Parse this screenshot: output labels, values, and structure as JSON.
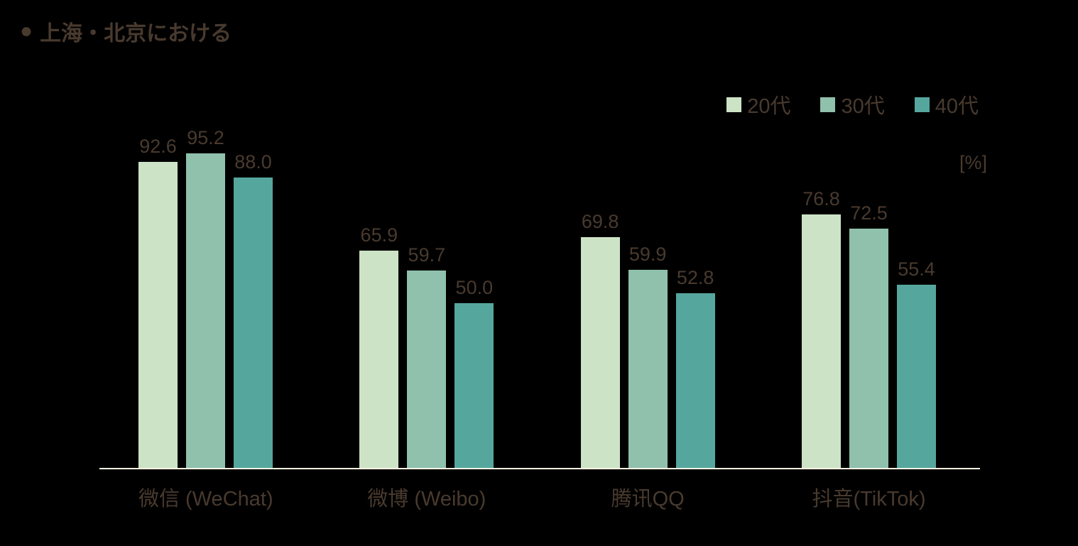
{
  "background": "#000000",
  "text_color": "#493a2e",
  "axis_color": "#f8f1e3",
  "header": {
    "bullet": "●",
    "title": "上海・北京における"
  },
  "unit_label": "[%]",
  "chart_data": {
    "type": "bar",
    "title": "上海・北京における",
    "categories": [
      "微信 (WeChat)",
      "微博 (Weibo)",
      "腾讯QQ",
      "抖音(TikTok)"
    ],
    "series": [
      {
        "name": "20代",
        "color": "#cde3c5",
        "values": [
          92.6,
          65.9,
          69.8,
          76.8
        ]
      },
      {
        "name": "30代",
        "color": "#8fc1ad",
        "values": [
          95.2,
          59.7,
          59.9,
          72.5
        ]
      },
      {
        "name": "40代",
        "color": "#55a79e",
        "values": [
          88.0,
          50.0,
          52.8,
          55.4
        ]
      }
    ],
    "ylabel": "[%]",
    "ylim": [
      0,
      100
    ],
    "value_labels": true,
    "value_label_format": "0.1f",
    "legend_position": "top-right",
    "grid": false
  }
}
